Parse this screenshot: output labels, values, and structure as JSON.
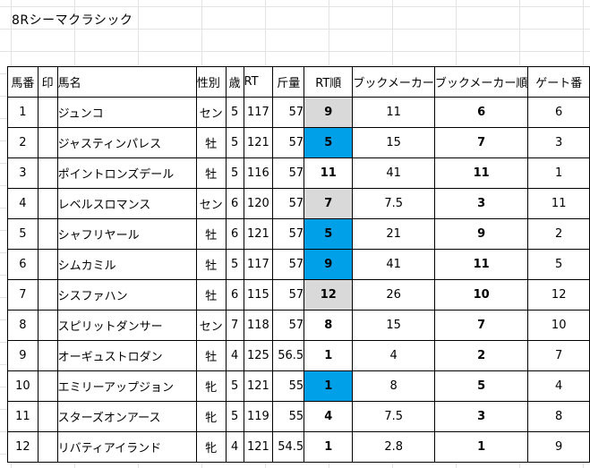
{
  "sheet": {
    "title": "8Rシーマクラシック",
    "headers": {
      "umaban": "馬番",
      "shirushi": "印",
      "bamei": "馬名",
      "seibetsu": "性別",
      "sai": "歳",
      "rt": "RT",
      "kinryo": "斤量",
      "rt_jun": "RT順",
      "bookmaker": "ブックメーカー",
      "bookmaker_jun": "ブックメーカー順",
      "gate": "ゲート番"
    },
    "colors": {
      "highlight_blue": "#00a0e9",
      "highlight_gray": "#d9d9d9"
    },
    "rows": [
      {
        "umaban": "1",
        "shirushi": "",
        "name": "ジュンコ",
        "sex": "セン",
        "age": "5",
        "rt": "117",
        "kin": "57",
        "rt_rank": "9",
        "rt_bg": "gray",
        "odds": "11",
        "bk_rank": "6",
        "gate": "6"
      },
      {
        "umaban": "2",
        "shirushi": "",
        "name": "ジャスティンパレス",
        "sex": "牡",
        "age": "5",
        "rt": "121",
        "kin": "57",
        "rt_rank": "5",
        "rt_bg": "blue",
        "odds": "15",
        "bk_rank": "7",
        "gate": "3"
      },
      {
        "umaban": "3",
        "shirushi": "",
        "name": "ポイントロンズデール",
        "sex": "牡",
        "age": "5",
        "rt": "116",
        "kin": "57",
        "rt_rank": "11",
        "rt_bg": "none",
        "odds": "41",
        "bk_rank": "11",
        "gate": "1"
      },
      {
        "umaban": "4",
        "shirushi": "",
        "name": "レベルスロマンス",
        "sex": "セン",
        "age": "6",
        "rt": "120",
        "kin": "57",
        "rt_rank": "7",
        "rt_bg": "gray",
        "odds": "7.5",
        "bk_rank": "3",
        "gate": "11"
      },
      {
        "umaban": "5",
        "shirushi": "",
        "name": "シャフリヤール",
        "sex": "牡",
        "age": "6",
        "rt": "121",
        "kin": "57",
        "rt_rank": "5",
        "rt_bg": "blue",
        "odds": "21",
        "bk_rank": "9",
        "gate": "2"
      },
      {
        "umaban": "6",
        "shirushi": "",
        "name": "シムカミル",
        "sex": "牡",
        "age": "5",
        "rt": "117",
        "kin": "57",
        "rt_rank": "9",
        "rt_bg": "blue",
        "odds": "41",
        "bk_rank": "11",
        "gate": "5"
      },
      {
        "umaban": "7",
        "shirushi": "",
        "name": "シスファハン",
        "sex": "牡",
        "age": "6",
        "rt": "115",
        "kin": "57",
        "rt_rank": "12",
        "rt_bg": "gray",
        "odds": "26",
        "bk_rank": "10",
        "gate": "12"
      },
      {
        "umaban": "8",
        "shirushi": "",
        "name": "スピリットダンサー",
        "sex": "セン",
        "age": "7",
        "rt": "118",
        "kin": "57",
        "rt_rank": "8",
        "rt_bg": "none",
        "odds": "15",
        "bk_rank": "7",
        "gate": "10"
      },
      {
        "umaban": "9",
        "shirushi": "",
        "name": "オーギュストロダン",
        "sex": "牡",
        "age": "4",
        "rt": "125",
        "kin": "56.5",
        "rt_rank": "1",
        "rt_bg": "none",
        "odds": "4",
        "bk_rank": "2",
        "gate": "7"
      },
      {
        "umaban": "10",
        "shirushi": "",
        "name": "エミリーアップジョン",
        "sex": "牝",
        "age": "5",
        "rt": "121",
        "kin": "55",
        "rt_rank": "1",
        "rt_bg": "blue",
        "odds": "8",
        "bk_rank": "5",
        "gate": "4"
      },
      {
        "umaban": "11",
        "shirushi": "",
        "name": "スターズオンアース",
        "sex": "牝",
        "age": "5",
        "rt": "119",
        "kin": "55",
        "rt_rank": "4",
        "rt_bg": "none",
        "odds": "7.5",
        "bk_rank": "3",
        "gate": "8"
      },
      {
        "umaban": "12",
        "shirushi": "",
        "name": "リバティアイランド",
        "sex": "牝",
        "age": "4",
        "rt": "121",
        "kin": "54.5",
        "rt_rank": "1",
        "rt_bg": "none",
        "odds": "2.8",
        "bk_rank": "1",
        "gate": "9"
      }
    ]
  }
}
